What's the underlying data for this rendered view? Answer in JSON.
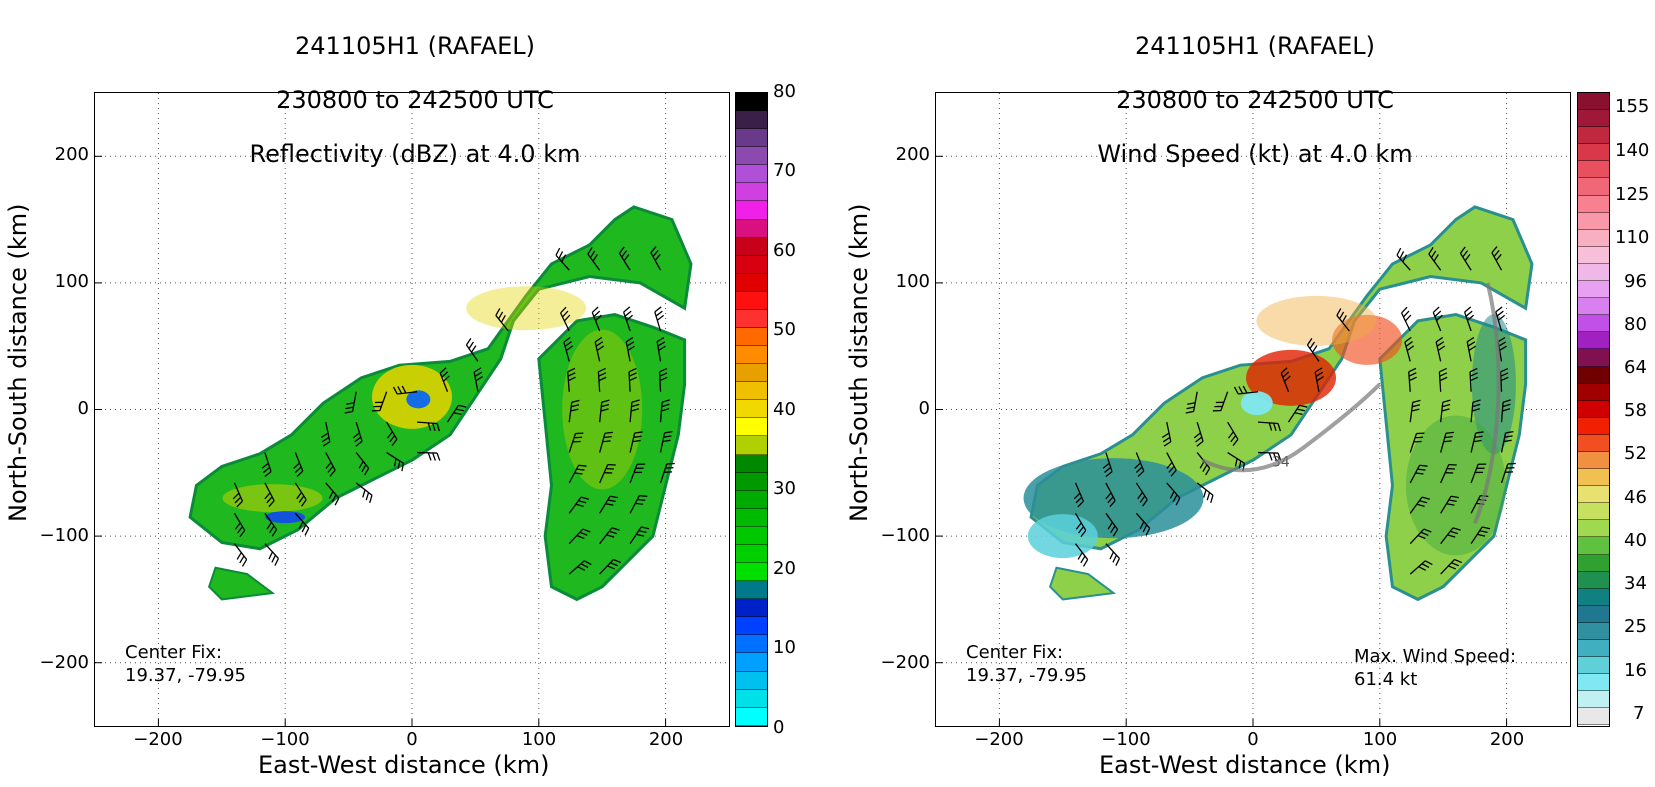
{
  "chart_data": [
    {
      "type": "heatmap",
      "title_lines": [
        "241105H1 (RAFAEL)",
        "230800 to 242500 UTC",
        "Reflectivity (dBZ) at 4.0 km"
      ],
      "xlabel": "East-West distance (km)",
      "ylabel": "North-South distance (km)",
      "xlim": [
        -250,
        250
      ],
      "ylim": [
        -250,
        250
      ],
      "xticks": [
        "−200",
        "−100",
        "0",
        "100",
        "200"
      ],
      "yticks": [
        "200",
        "100",
        "0",
        "−100",
        "−200"
      ],
      "grid": true,
      "colorbar": {
        "range": [
          0,
          80
        ],
        "tick_labels": [
          "80",
          "70",
          "60",
          "50",
          "40",
          "30",
          "20",
          "10",
          "0"
        ],
        "colors": [
          "#000000",
          "#3a2048",
          "#6a3a8a",
          "#8a4ab0",
          "#b050d8",
          "#d040e0",
          "#f020e8",
          "#d81080",
          "#c8001a",
          "#d80010",
          "#e00000",
          "#ff1010",
          "#ff3030",
          "#ff6a00",
          "#ff8c00",
          "#e8a000",
          "#f0c000",
          "#f0d800",
          "#ffff00",
          "#b0d000",
          "#008800",
          "#009a00",
          "#00aa00",
          "#00ba00",
          "#00c800",
          "#00d000",
          "#00e000",
          "#007a8a",
          "#0020c8",
          "#0040ff",
          "#0070ff",
          "#00a0ff",
          "#00c0f0",
          "#00e0e8",
          "#00ffff"
        ]
      },
      "annotation": "Center Fix:\n19.37, -79.95"
    },
    {
      "type": "heatmap",
      "title_lines": [
        "241105H1 (RAFAEL)",
        "230800 to 242500 UTC",
        "Wind Speed (kt) at 4.0 km"
      ],
      "xlabel": "East-West distance (km)",
      "ylabel": "North-South distance (km)",
      "xlim": [
        -250,
        250
      ],
      "ylim": [
        -250,
        250
      ],
      "xticks": [
        "−200",
        "−100",
        "0",
        "100",
        "200"
      ],
      "yticks": [
        "200",
        "100",
        "0",
        "−100",
        "−200"
      ],
      "grid": true,
      "contour_label": "34",
      "colorbar": {
        "range": [
          7,
          155
        ],
        "tick_labels": [
          "155",
          "140",
          "125",
          "110",
          "96",
          "80",
          "64",
          "58",
          "52",
          "46",
          "40",
          "34",
          "25",
          "16",
          "7"
        ],
        "colors": [
          "#8a1030",
          "#a01838",
          "#c02840",
          "#d83848",
          "#e85060",
          "#f06878",
          "#f88090",
          "#f898a8",
          "#f8b0c0",
          "#f8c0d8",
          "#f0b8e8",
          "#e8a0f0",
          "#d880f0",
          "#c050e8",
          "#a020c0",
          "#801050",
          "#700000",
          "#a00000",
          "#d00000",
          "#f02000",
          "#f05020",
          "#f09040",
          "#f0c050",
          "#e8e070",
          "#c8e060",
          "#a0d850",
          "#60c040",
          "#30a030",
          "#209050",
          "#108080",
          "#207890",
          "#3090a0",
          "#40b0c0",
          "#60d0d8",
          "#80e8f0",
          "#c0f0f0",
          "#e8e8e8"
        ]
      },
      "annotation": "Center Fix:\n19.37, -79.95",
      "max_wind_note": "Max. Wind Speed:\n61.4 kt"
    }
  ]
}
